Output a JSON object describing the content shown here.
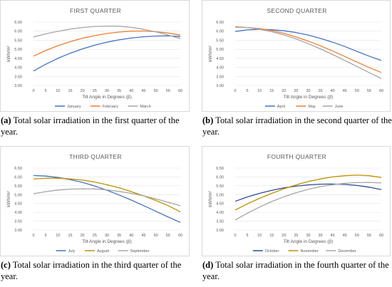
{
  "charts": [
    {
      "caption_tag": "(a)",
      "caption_text": "Total solar irradiation in the first quarter of the year.",
      "chart_data": {
        "type": "line",
        "title": "FIRST QUARTER",
        "xlabel": "Tilt Angle in Degrees (β)",
        "ylabel": "kWh/m²",
        "x": [
          0,
          5,
          10,
          15,
          20,
          25,
          30,
          35,
          40,
          45,
          50,
          55,
          60
        ],
        "xlim": [
          0,
          60
        ],
        "ylim": [
          3.0,
          6.5
        ],
        "yticks": [
          "3.00",
          "3.50",
          "4.00",
          "4.50",
          "5.00",
          "5.50",
          "6.00",
          "6.50"
        ],
        "legend_position": "bottom",
        "series": [
          {
            "name": "January",
            "color": "#4472c4",
            "values": [
              3.8,
              4.17,
              4.5,
              4.78,
              5.02,
              5.22,
              5.39,
              5.52,
              5.62,
              5.69,
              5.73,
              5.74,
              5.7
            ]
          },
          {
            "name": "February",
            "color": "#ed7d31",
            "values": [
              4.62,
              4.93,
              5.2,
              5.42,
              5.61,
              5.75,
              5.87,
              5.95,
              6.0,
              6.01,
              5.97,
              5.9,
              5.78
            ]
          },
          {
            "name": "March",
            "color": "#a5a5a5",
            "values": [
              5.68,
              5.85,
              5.99,
              6.11,
              6.2,
              6.26,
              6.28,
              6.27,
              6.21,
              6.1,
              5.96,
              5.79,
              5.58
            ]
          }
        ]
      }
    },
    {
      "caption_tag": "(b)",
      "caption_text": "Total solar irradiation in the second quarter of the year.",
      "chart_data": {
        "type": "line",
        "title": "SECOND QUARTER",
        "xlabel": "Tilt Angle in Degrees (β)",
        "ylabel": "kWh/m²",
        "x": [
          0,
          5,
          10,
          15,
          20,
          25,
          30,
          35,
          40,
          45,
          50,
          55,
          60
        ],
        "xlim": [
          0,
          60
        ],
        "ylim": [
          3.0,
          6.5
        ],
        "yticks": [
          "3.00",
          "3.50",
          "4.00",
          "4.50",
          "5.00",
          "5.50",
          "6.00",
          "6.50"
        ],
        "legend_position": "bottom",
        "series": [
          {
            "name": "April",
            "color": "#4472c4",
            "values": [
              5.98,
              6.07,
              6.1,
              6.08,
              6.02,
              5.92,
              5.78,
              5.6,
              5.39,
              5.15,
              4.88,
              4.62,
              4.38
            ]
          },
          {
            "name": "May",
            "color": "#ed7d31",
            "values": [
              6.22,
              6.2,
              6.14,
              6.03,
              5.88,
              5.68,
              5.45,
              5.19,
              4.9,
              4.6,
              4.29,
              3.99,
              3.72
            ]
          },
          {
            "name": "June",
            "color": "#a5a5a5",
            "values": [
              6.25,
              6.2,
              6.1,
              5.97,
              5.79,
              5.57,
              5.31,
              5.02,
              4.71,
              4.38,
              4.05,
              3.71,
              3.38
            ]
          }
        ]
      }
    },
    {
      "caption_tag": "(c)",
      "caption_text": "Total solar irradiation in the third quarter of the year.",
      "chart_data": {
        "type": "line",
        "title": "THIRD QUARTER",
        "xlabel": "Tilt Angle in Degrees (β)",
        "ylabel": "kWh/m²",
        "x": [
          0,
          5,
          10,
          15,
          20,
          25,
          30,
          35,
          40,
          45,
          50,
          55,
          60
        ],
        "xlim": [
          0,
          60
        ],
        "ylim": [
          3.0,
          6.5
        ],
        "yticks": [
          "3.00",
          "3.50",
          "4.00",
          "4.50",
          "5.00",
          "5.50",
          "6.00",
          "6.50"
        ],
        "legend_position": "bottom",
        "series": [
          {
            "name": "July",
            "color": "#4472c4",
            "values": [
              6.08,
              6.05,
              5.97,
              5.85,
              5.69,
              5.49,
              5.25,
              4.98,
              4.69,
              4.38,
              4.06,
              3.74,
              3.43
            ]
          },
          {
            "name": "August",
            "color": "#bf9000",
            "values": [
              5.88,
              5.92,
              5.93,
              5.89,
              5.82,
              5.71,
              5.56,
              5.38,
              5.17,
              4.93,
              4.67,
              4.38,
              4.03
            ]
          },
          {
            "name": "September",
            "color": "#a5a5a5",
            "values": [
              5.05,
              5.17,
              5.26,
              5.31,
              5.33,
              5.32,
              5.27,
              5.18,
              5.07,
              4.93,
              4.76,
              4.57,
              4.37
            ]
          }
        ]
      }
    },
    {
      "caption_tag": "(d)",
      "caption_text": "Total solar irradiation in the fourth quarter of the year.",
      "chart_data": {
        "type": "line",
        "title": "FOURTH QUARTER",
        "xlabel": "Tilt Angle in Degrees (β)",
        "ylabel": "kWh/m²",
        "x": [
          0,
          5,
          10,
          15,
          20,
          25,
          30,
          35,
          40,
          45,
          50,
          55,
          60
        ],
        "xlim": [
          0,
          60
        ],
        "ylim": [
          3.0,
          6.5
        ],
        "yticks": [
          "3.00",
          "3.50",
          "4.00",
          "4.50",
          "5.00",
          "5.50",
          "6.00",
          "6.50"
        ],
        "legend_position": "bottom",
        "series": [
          {
            "name": "October",
            "color": "#2f4b9c",
            "values": [
              4.62,
              4.87,
              5.07,
              5.24,
              5.38,
              5.48,
              5.55,
              5.59,
              5.6,
              5.58,
              5.52,
              5.42,
              5.28
            ]
          },
          {
            "name": "November",
            "color": "#bf9000",
            "values": [
              4.13,
              4.48,
              4.79,
              5.07,
              5.33,
              5.55,
              5.74,
              5.89,
              6.0,
              6.07,
              6.1,
              6.07,
              5.97
            ]
          },
          {
            "name": "December",
            "color": "#a5a5a5",
            "values": [
              3.57,
              3.95,
              4.3,
              4.61,
              4.88,
              5.11,
              5.3,
              5.45,
              5.56,
              5.64,
              5.68,
              5.69,
              5.66
            ]
          }
        ]
      }
    }
  ]
}
